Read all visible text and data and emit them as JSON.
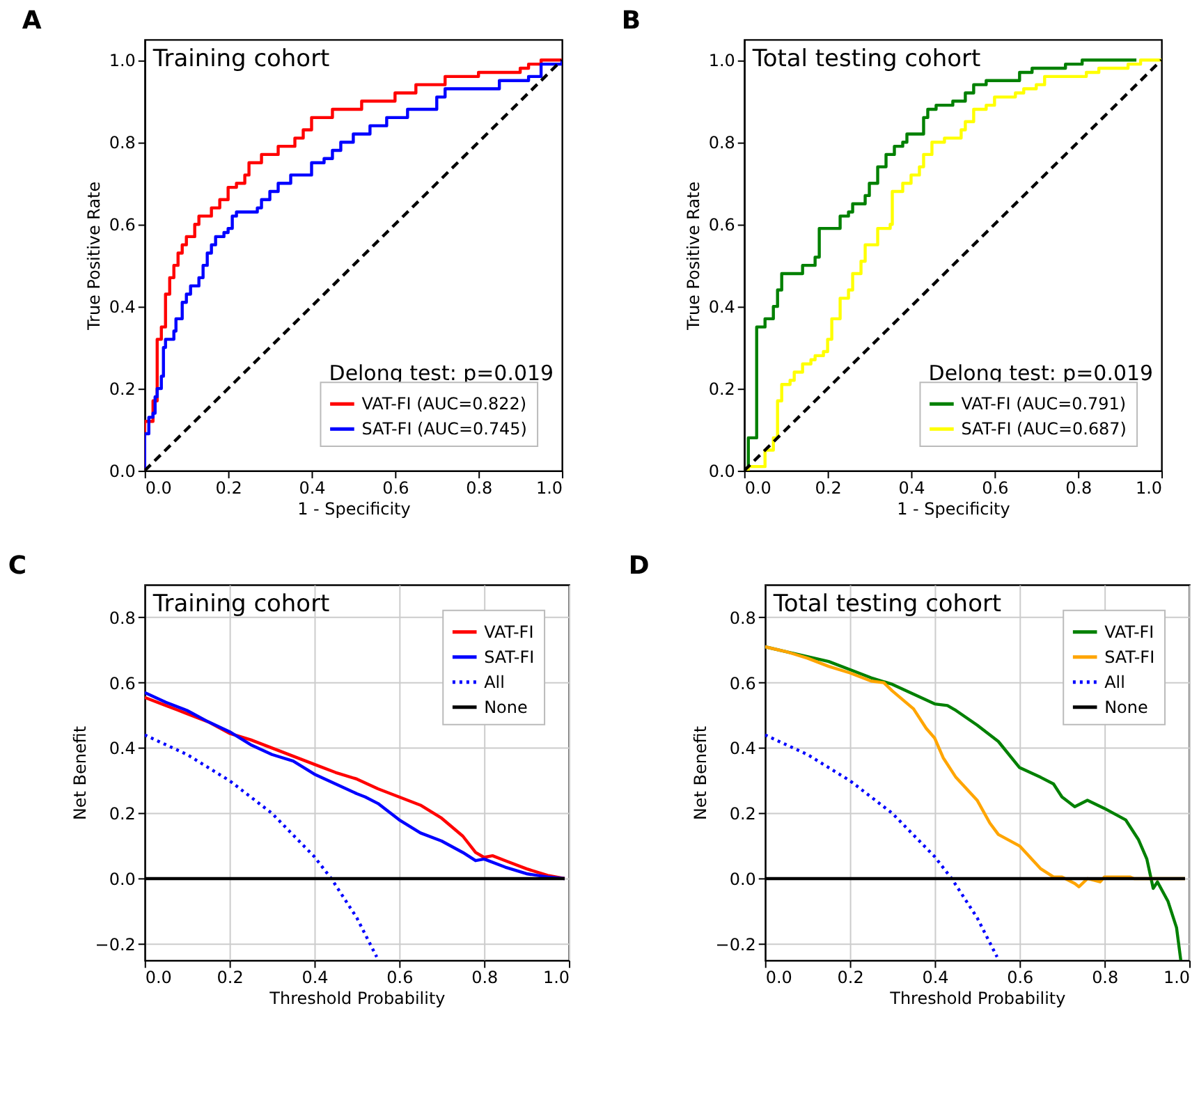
{
  "chart_data": [
    {
      "type": "step",
      "title": "A",
      "xlabel": "1 - Specificity",
      "ylabel": "True Positive Rate",
      "annotations": [
        "Training cohort",
        "Delong test: p=0.019"
      ],
      "xlim": [
        0,
        1
      ],
      "ylim": [
        0,
        1.05
      ],
      "xticks": [
        {
          "value": 0,
          "label": "0.0"
        },
        {
          "value": 0.2,
          "label": "0.2"
        },
        {
          "value": 0.4,
          "label": "0.4"
        },
        {
          "value": 0.6,
          "label": "0.6"
        },
        {
          "value": 0.8,
          "label": "0.8"
        },
        {
          "value": 1,
          "label": "1.0"
        }
      ],
      "yticks": [
        {
          "value": 0,
          "label": "0.0"
        },
        {
          "value": 0.2,
          "label": "0.2"
        },
        {
          "value": 0.4,
          "label": "0.4"
        },
        {
          "value": 0.6,
          "label": "0.6"
        },
        {
          "value": 0.8,
          "label": "0.8"
        },
        {
          "value": 1,
          "label": "1.0"
        }
      ],
      "grid": false,
      "legend": "bottom right",
      "marker": "none",
      "series": [
        {
          "name": "VAT-FI (AUC=0.822)",
          "color": "#ff0000",
          "line_style": "solid",
          "x": [
            0,
            0,
            0.02,
            0.02,
            0.03,
            0.04,
            0.05,
            0.06,
            0.07,
            0.08,
            0.09,
            0.1,
            0.12,
            0.13,
            0.16,
            0.18,
            0.2,
            0.22,
            0.24,
            0.25,
            0.28,
            0.32,
            0.36,
            0.38,
            0.4,
            0.45,
            0.52,
            0.6,
            0.65,
            0.72,
            0.8,
            0.9,
            0.92,
            0.95,
            1
          ],
          "values": [
            0,
            0.12,
            0.12,
            0.17,
            0.32,
            0.35,
            0.43,
            0.47,
            0.5,
            0.53,
            0.55,
            0.57,
            0.6,
            0.62,
            0.64,
            0.66,
            0.69,
            0.7,
            0.72,
            0.75,
            0.77,
            0.79,
            0.81,
            0.83,
            0.86,
            0.88,
            0.9,
            0.92,
            0.94,
            0.96,
            0.97,
            0.98,
            0.99,
            1,
            1
          ]
        },
        {
          "name": "SAT-FI (AUC=0.745)",
          "color": "#0000ff",
          "line_style": "solid",
          "x": [
            0,
            0,
            0.01,
            0.02,
            0.025,
            0.03,
            0.04,
            0.045,
            0.05,
            0.07,
            0.075,
            0.09,
            0.1,
            0.11,
            0.13,
            0.14,
            0.15,
            0.16,
            0.17,
            0.19,
            0.2,
            0.21,
            0.22,
            0.27,
            0.28,
            0.3,
            0.32,
            0.35,
            0.4,
            0.43,
            0.45,
            0.47,
            0.5,
            0.54,
            0.58,
            0.63,
            0.7,
            0.72,
            0.85,
            0.92,
            0.95,
            1
          ],
          "values": [
            0,
            0.09,
            0.13,
            0.14,
            0.18,
            0.2,
            0.23,
            0.3,
            0.32,
            0.34,
            0.37,
            0.41,
            0.43,
            0.45,
            0.47,
            0.5,
            0.53,
            0.55,
            0.57,
            0.58,
            0.59,
            0.62,
            0.63,
            0.64,
            0.66,
            0.68,
            0.7,
            0.72,
            0.75,
            0.76,
            0.78,
            0.8,
            0.82,
            0.84,
            0.86,
            0.88,
            0.91,
            0.93,
            0.95,
            0.96,
            0.99,
            1
          ]
        },
        {
          "type": "line",
          "color": "#000000",
          "line_style": "dashed",
          "x": [
            0,
            1
          ],
          "values": [
            0,
            1
          ]
        }
      ]
    },
    {
      "type": "step",
      "title": "B",
      "xlabel": "1 - Specificity",
      "ylabel": "True Positive Rate",
      "annotations": [
        "Total testing cohort",
        "Delong test: p=0.019"
      ],
      "xlim": [
        0,
        1
      ],
      "ylim": [
        0,
        1.05
      ],
      "xticks": [
        {
          "value": 0,
          "label": "0.0"
        },
        {
          "value": 0.2,
          "label": "0.2"
        },
        {
          "value": 0.4,
          "label": "0.4"
        },
        {
          "value": 0.6,
          "label": "0.6"
        },
        {
          "value": 0.8,
          "label": "0.8"
        },
        {
          "value": 1,
          "label": "1.0"
        }
      ],
      "yticks": [
        {
          "value": 0,
          "label": "0.0"
        },
        {
          "value": 0.2,
          "label": "0.2"
        },
        {
          "value": 0.4,
          "label": "0.4"
        },
        {
          "value": 0.6,
          "label": "0.6"
        },
        {
          "value": 0.8,
          "label": "0.8"
        },
        {
          "value": 1,
          "label": "1.0"
        }
      ],
      "grid": false,
      "legend": "bottom right",
      "marker": "none",
      "series": [
        {
          "name": "VAT-FI (AUC=0.791)",
          "color": "#008000",
          "line_style": "solid",
          "x": [
            0,
            0.01,
            0.03,
            0.05,
            0.07,
            0.08,
            0.09,
            0.14,
            0.17,
            0.18,
            0.23,
            0.25,
            0.26,
            0.29,
            0.3,
            0.32,
            0.34,
            0.36,
            0.38,
            0.39,
            0.43,
            0.44,
            0.46,
            0.5,
            0.53,
            0.55,
            0.58,
            0.66,
            0.69,
            0.77,
            0.81,
            0.94
          ],
          "values": [
            0,
            0.08,
            0.35,
            0.37,
            0.4,
            0.44,
            0.48,
            0.5,
            0.52,
            0.59,
            0.62,
            0.63,
            0.65,
            0.67,
            0.7,
            0.74,
            0.77,
            0.79,
            0.8,
            0.82,
            0.86,
            0.88,
            0.89,
            0.9,
            0.92,
            0.94,
            0.95,
            0.97,
            0.98,
            0.99,
            1,
            1
          ]
        },
        {
          "name": "SAT-FI (AUC=0.687)",
          "color": "#ffff00",
          "line_style": "solid",
          "x": [
            0,
            0.01,
            0.05,
            0.07,
            0.08,
            0.09,
            0.11,
            0.12,
            0.14,
            0.16,
            0.17,
            0.19,
            0.2,
            0.21,
            0.23,
            0.25,
            0.26,
            0.28,
            0.29,
            0.32,
            0.35,
            0.355,
            0.38,
            0.4,
            0.42,
            0.43,
            0.45,
            0.48,
            0.52,
            0.53,
            0.55,
            0.58,
            0.6,
            0.65,
            0.67,
            0.7,
            0.72,
            0.8,
            0.82,
            0.85,
            0.92,
            0.95,
            1
          ],
          "values": [
            0,
            0.01,
            0.05,
            0.08,
            0.17,
            0.21,
            0.22,
            0.24,
            0.26,
            0.27,
            0.28,
            0.29,
            0.32,
            0.37,
            0.42,
            0.44,
            0.48,
            0.51,
            0.55,
            0.59,
            0.6,
            0.68,
            0.7,
            0.72,
            0.74,
            0.77,
            0.8,
            0.81,
            0.83,
            0.85,
            0.88,
            0.89,
            0.91,
            0.92,
            0.93,
            0.94,
            0.96,
            0.96,
            0.97,
            0.98,
            0.99,
            1,
            1
          ]
        },
        {
          "type": "line",
          "color": "#000000",
          "line_style": "dashed",
          "x": [
            0,
            1
          ],
          "values": [
            0,
            1
          ]
        }
      ]
    },
    {
      "type": "line",
      "title": "C",
      "xlabel": "Threshold Probability",
      "ylabel": "Net Benefit",
      "annotations": [
        "Training cohort"
      ],
      "xlim": [
        0,
        1
      ],
      "ylim": [
        -0.25,
        0.9
      ],
      "xticks": [
        {
          "value": 0,
          "label": "0.0"
        },
        {
          "value": 0.2,
          "label": "0.2"
        },
        {
          "value": 0.4,
          "label": "0.4"
        },
        {
          "value": 0.6,
          "label": "0.6"
        },
        {
          "value": 0.8,
          "label": "0.8"
        },
        {
          "value": 1,
          "label": "1.0"
        }
      ],
      "yticks": [
        {
          "value": -0.2,
          "label": "−0.2"
        },
        {
          "value": 0,
          "label": "0.0"
        },
        {
          "value": 0.2,
          "label": "0.2"
        },
        {
          "value": 0.4,
          "label": "0.4"
        },
        {
          "value": 0.6,
          "label": "0.6"
        },
        {
          "value": 0.8,
          "label": "0.8"
        }
      ],
      "grid": true,
      "legend": "top right",
      "marker": "none",
      "series": [
        {
          "name": "VAT-FI",
          "color": "#ff0000",
          "line_style": "solid",
          "x": [
            0,
            0.05,
            0.1,
            0.15,
            0.2,
            0.25,
            0.3,
            0.35,
            0.4,
            0.45,
            0.5,
            0.55,
            0.6,
            0.65,
            0.7,
            0.75,
            0.78,
            0.8,
            0.82,
            0.85,
            0.9,
            0.95,
            0.99
          ],
          "values": [
            0.555,
            0.53,
            0.505,
            0.48,
            0.445,
            0.425,
            0.4,
            0.375,
            0.35,
            0.325,
            0.305,
            0.275,
            0.25,
            0.225,
            0.185,
            0.13,
            0.08,
            0.065,
            0.07,
            0.055,
            0.03,
            0.01,
            0
          ]
        },
        {
          "name": "SAT-FI",
          "color": "#0000ff",
          "line_style": "solid",
          "x": [
            0,
            0.05,
            0.1,
            0.15,
            0.2,
            0.25,
            0.3,
            0.35,
            0.4,
            0.45,
            0.5,
            0.52,
            0.55,
            0.6,
            0.65,
            0.7,
            0.75,
            0.78,
            0.8,
            0.85,
            0.9,
            0.95,
            0.99
          ],
          "values": [
            0.57,
            0.54,
            0.515,
            0.48,
            0.45,
            0.41,
            0.38,
            0.36,
            0.32,
            0.29,
            0.26,
            0.25,
            0.23,
            0.18,
            0.14,
            0.115,
            0.08,
            0.055,
            0.06,
            0.035,
            0.015,
            0.005,
            0
          ]
        },
        {
          "name": "All",
          "color": "#0000ff",
          "line_style": "dotted",
          "x": [
            0,
            0.1,
            0.2,
            0.3,
            0.4,
            0.44,
            0.5,
            0.547
          ],
          "values": [
            0.44,
            0.38,
            0.3,
            0.2,
            0.067,
            0,
            -0.12,
            -0.24
          ]
        },
        {
          "name": "None",
          "color": "#000000",
          "line_style": "solid",
          "x": [
            0,
            0.99
          ],
          "values": [
            0,
            0
          ]
        }
      ]
    },
    {
      "type": "line",
      "title": "D",
      "xlabel": "Threshold Probability",
      "ylabel": "Net Benefit",
      "annotations": [
        "Total testing cohort"
      ],
      "xlim": [
        0,
        1
      ],
      "ylim": [
        -0.25,
        0.9
      ],
      "xticks": [
        {
          "value": 0,
          "label": "0.0"
        },
        {
          "value": 0.2,
          "label": "0.2"
        },
        {
          "value": 0.4,
          "label": "0.4"
        },
        {
          "value": 0.6,
          "label": "0.6"
        },
        {
          "value": 0.8,
          "label": "0.8"
        },
        {
          "value": 1,
          "label": "1.0"
        }
      ],
      "yticks": [
        {
          "value": -0.2,
          "label": "−0.2"
        },
        {
          "value": 0,
          "label": "0.0"
        },
        {
          "value": 0.2,
          "label": "0.2"
        },
        {
          "value": 0.4,
          "label": "0.4"
        },
        {
          "value": 0.6,
          "label": "0.6"
        },
        {
          "value": 0.8,
          "label": "0.8"
        }
      ],
      "grid": true,
      "legend": "top right",
      "marker": "none",
      "series": [
        {
          "name": "VAT-FI",
          "color": "#008000",
          "line_style": "solid",
          "x": [
            0,
            0.05,
            0.1,
            0.15,
            0.2,
            0.25,
            0.3,
            0.35,
            0.4,
            0.43,
            0.45,
            0.5,
            0.55,
            0.6,
            0.65,
            0.68,
            0.7,
            0.73,
            0.76,
            0.8,
            0.85,
            0.88,
            0.9,
            0.915,
            0.925,
            0.95,
            0.97,
            0.98
          ],
          "values": [
            0.71,
            0.695,
            0.68,
            0.665,
            0.64,
            0.615,
            0.595,
            0.565,
            0.535,
            0.53,
            0.515,
            0.47,
            0.42,
            0.34,
            0.31,
            0.29,
            0.25,
            0.22,
            0.24,
            0.215,
            0.18,
            0.12,
            0.06,
            -0.03,
            -0.01,
            -0.07,
            -0.15,
            -0.25
          ]
        },
        {
          "name": "SAT-FI",
          "color": "#ffa500",
          "line_style": "solid",
          "x": [
            0,
            0.05,
            0.1,
            0.15,
            0.2,
            0.25,
            0.28,
            0.3,
            0.35,
            0.38,
            0.4,
            0.42,
            0.45,
            0.5,
            0.53,
            0.55,
            0.6,
            0.65,
            0.68,
            0.7,
            0.73,
            0.74,
            0.76,
            0.79,
            0.8,
            0.86,
            0.87,
            0.99
          ],
          "values": [
            0.71,
            0.695,
            0.675,
            0.65,
            0.63,
            0.605,
            0.6,
            0.575,
            0.52,
            0.46,
            0.43,
            0.37,
            0.31,
            0.24,
            0.17,
            0.135,
            0.1,
            0.03,
            0.005,
            0.005,
            -0.015,
            -0.025,
            0,
            -0.01,
            0.005,
            0.005,
            0,
            0
          ]
        },
        {
          "name": "All",
          "color": "#0000ff",
          "line_style": "dotted",
          "x": [
            0,
            0.1,
            0.2,
            0.3,
            0.4,
            0.44,
            0.5,
            0.547
          ],
          "values": [
            0.44,
            0.38,
            0.3,
            0.2,
            0.067,
            0,
            -0.12,
            -0.24
          ]
        },
        {
          "name": "None",
          "color": "#000000",
          "line_style": "solid",
          "x": [
            0,
            0.99
          ],
          "values": [
            0,
            0
          ]
        }
      ]
    }
  ]
}
